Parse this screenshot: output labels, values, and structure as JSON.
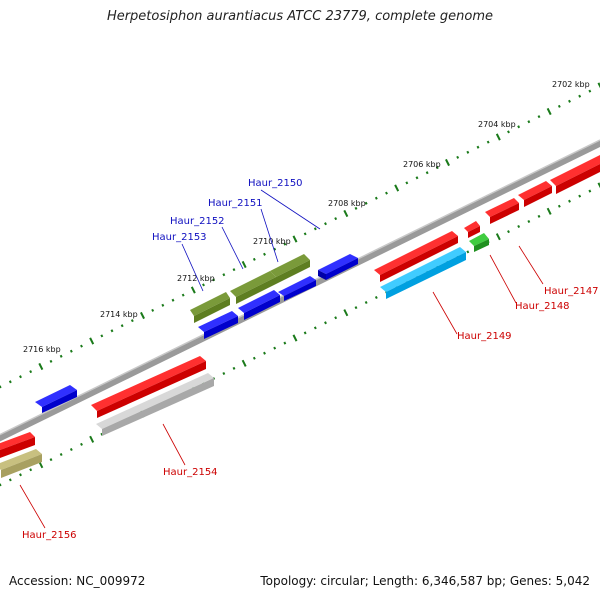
{
  "title": "Herpetosiphon aurantiacus ATCC 23779, complete genome",
  "accession": "Accession: NC_009972",
  "summary": "Topology: circular; Length: 6,346,587 bp; Genes: 5,042",
  "colors": {
    "backbone": "#888888",
    "tick": "#1a7a1a",
    "label_plus": "#1010c0",
    "label_minus": "#cc0000"
  },
  "scale_labels": [
    "2702 kbp",
    "2704 kbp",
    "2706 kbp",
    "2708 kbp",
    "2710 kbp",
    "2712 kbp",
    "2714 kbp",
    "2716 kbp"
  ],
  "gene_labels": [
    "Haur_2150",
    "Haur_2151",
    "Haur_2152",
    "Haur_2153",
    "Haur_2147",
    "Haur_2148",
    "Haur_2149",
    "Haur_2154",
    "Haur_2156"
  ]
}
